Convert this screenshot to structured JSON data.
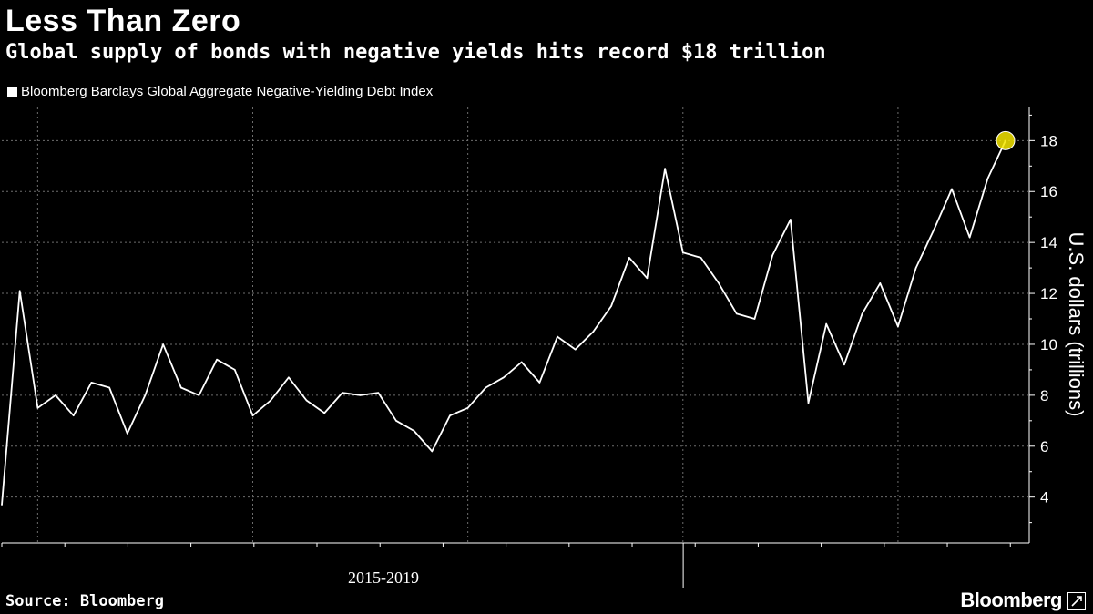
{
  "header": {
    "title": "Less Than Zero",
    "subtitle": "Global supply of bonds with negative yields hits record $18 trillion"
  },
  "footer": {
    "source": "Source: Bloomberg",
    "brand": "Bloomberg"
  },
  "colors": {
    "background": "#000000",
    "line": "#ffffff",
    "highlight": "#f5e600",
    "grid": "#6e6e6e"
  },
  "chart_data": {
    "type": "line",
    "title": "Less Than Zero",
    "subtitle": "Global supply of bonds with negative yields hits record $18 trillion",
    "xlabel": "2015-2019",
    "ylabel": "U.S. dollars (trillions)",
    "ylim": [
      2.2,
      19.3
    ],
    "y_ticks": [
      4,
      6,
      8,
      10,
      12,
      14,
      16,
      18
    ],
    "grid": "dashed",
    "legend_position": "top-left",
    "highlight_last_point": true,
    "series": [
      {
        "name": "Bloomberg Barclays Global Aggregate Negative-Yielding Debt Index",
        "x": [
          "2014-12",
          "2015-01",
          "2015-02",
          "2015-03",
          "2015-04",
          "2015-05",
          "2015-06",
          "2015-07",
          "2015-08",
          "2015-09",
          "2015-10",
          "2015-11",
          "2015-12",
          "2016-01",
          "2016-02",
          "2016-03",
          "2016-04",
          "2016-05",
          "2016-06",
          "2016-07",
          "2016-08",
          "2016-09",
          "2016-10",
          "2016-11",
          "2016-12",
          "2017-01",
          "2017-02",
          "2017-03",
          "2017-04",
          "2017-05",
          "2017-06",
          "2017-07",
          "2017-08",
          "2017-09",
          "2017-10",
          "2017-11",
          "2017-12",
          "2018-01",
          "2018-02",
          "2018-03",
          "2018-04",
          "2018-05",
          "2018-06",
          "2018-07",
          "2018-08",
          "2018-09",
          "2018-10",
          "2018-11",
          "2018-12",
          "2019-01",
          "2019-02",
          "2019-03",
          "2019-04",
          "2019-05",
          "2019-06",
          "2019-07",
          "2019-08"
        ],
        "values": [
          3.7,
          12.1,
          7.5,
          8.0,
          7.2,
          8.5,
          8.3,
          6.5,
          8.0,
          10.0,
          8.3,
          8.0,
          9.4,
          9.0,
          7.2,
          7.8,
          8.7,
          7.8,
          7.3,
          8.1,
          8.0,
          8.1,
          7.0,
          6.6,
          5.8,
          7.2,
          7.5,
          8.3,
          8.7,
          9.3,
          8.5,
          10.3,
          9.8,
          10.5,
          11.5,
          13.4,
          12.6,
          16.9,
          13.6,
          13.4,
          12.4,
          11.2,
          11.0,
          13.5,
          14.9,
          7.7,
          10.8,
          9.2,
          11.2,
          12.4,
          10.7,
          13.0,
          14.5,
          16.1,
          14.2,
          16.5,
          18.0
        ]
      }
    ]
  }
}
